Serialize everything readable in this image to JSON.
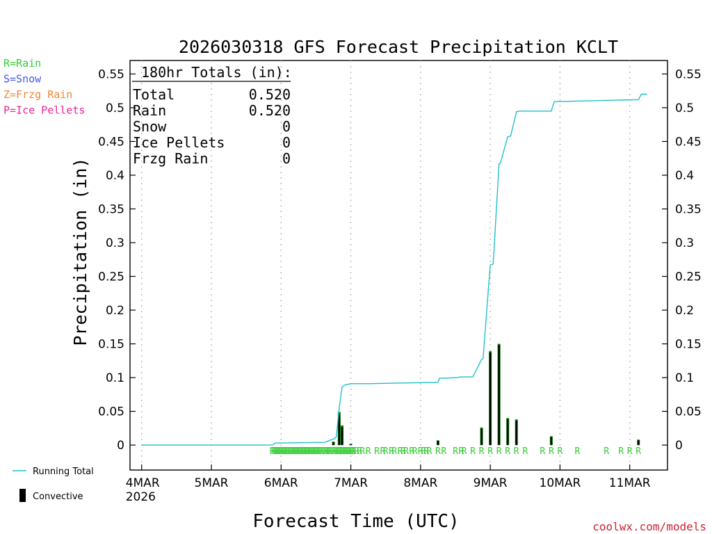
{
  "chart_data": {
    "type": "line",
    "title": "2026030318 GFS Forecast Precipitation KCLT",
    "xlabel": "Forecast Time (UTC)",
    "ylabel": "Precipitation (in)",
    "credit": "coolwx.com/models",
    "ylim": [
      -0.037,
      0.57
    ],
    "xlim_hours": [
      -4,
      181
    ],
    "y_ticks": [
      "0",
      "0.05",
      "0.1",
      "0.15",
      "0.2",
      "0.25",
      "0.3",
      "0.35",
      "0.4",
      "0.45",
      "0.5",
      "0.55"
    ],
    "x_ticks": [
      {
        "label": "4MAR",
        "hour": 0
      },
      {
        "label": "5MAR",
        "hour": 24
      },
      {
        "label": "6MAR",
        "hour": 48
      },
      {
        "label": "7MAR",
        "hour": 72
      },
      {
        "label": "8MAR",
        "hour": 96
      },
      {
        "label": "9MAR",
        "hour": 120
      },
      {
        "label": "10MAR",
        "hour": 144
      },
      {
        "label": "11MAR",
        "hour": 168
      }
    ],
    "x_year": "2026",
    "legend_types": [
      {
        "text": "R=Rain",
        "color": "#33cc33"
      },
      {
        "text": "S=Snow",
        "color": "#4455ee"
      },
      {
        "text": "Z=Frzg Rain",
        "color": "#ee8833"
      },
      {
        "text": "P=Ice Pellets",
        "color": "#ee2299"
      }
    ],
    "legend_series": [
      {
        "text": "Running Total",
        "color": "#1ec0c8"
      },
      {
        "text": "Convective",
        "color": "#000000"
      }
    ],
    "totals": {
      "header": "180hr Totals (in):",
      "rows": [
        {
          "label": "Total",
          "value": "0.520"
        },
        {
          "label": "Rain",
          "value": "0.520"
        },
        {
          "label": "Snow",
          "value": "0"
        },
        {
          "label": "Ice Pellets",
          "value": "0"
        },
        {
          "label": "Frzg Rain",
          "value": "0"
        }
      ]
    },
    "running_total": {
      "hours": [
        0,
        45,
        46,
        63,
        66,
        67,
        68,
        69,
        70,
        72,
        78,
        90,
        102,
        102.5,
        109,
        109.5,
        114,
        117,
        117.5,
        120,
        121,
        123,
        123.5,
        126,
        127,
        129,
        130,
        141,
        142,
        171,
        172,
        174
      ],
      "values": [
        0,
        0,
        0.003,
        0.004,
        0.009,
        0.012,
        0.055,
        0.086,
        0.089,
        0.091,
        0.091,
        0.092,
        0.093,
        0.099,
        0.1,
        0.101,
        0.101,
        0.127,
        0.128,
        0.267,
        0.268,
        0.417,
        0.418,
        0.457,
        0.458,
        0.494,
        0.495,
        0.495,
        0.509,
        0.512,
        0.52,
        0.52
      ]
    },
    "precip_bars": {
      "hours": [
        66,
        68,
        69,
        72,
        102,
        117,
        120,
        123,
        126,
        129,
        141,
        171
      ],
      "values": [
        0.005,
        0.049,
        0.029,
        0.002,
        0.007,
        0.026,
        0.139,
        0.15,
        0.04,
        0.038,
        0.013,
        0.008
      ],
      "color": "#007a00"
    },
    "convective_bars": {
      "hours": [
        66,
        68,
        69,
        72,
        102,
        117,
        120,
        123,
        126,
        129,
        141,
        171
      ],
      "values": [
        0.004,
        0.045,
        0.026,
        0.001,
        0.006,
        0.024,
        0.137,
        0.148,
        0.038,
        0.036,
        0.012,
        0.007
      ]
    },
    "type_markers": {
      "letter": "R",
      "hours": [
        45,
        45.5,
        46,
        46.5,
        47,
        47.5,
        48,
        48.5,
        49,
        49.5,
        50,
        50.5,
        51,
        51.5,
        52,
        52.5,
        53,
        53.5,
        54,
        54.5,
        55,
        55.5,
        56,
        56.5,
        57,
        57.5,
        58,
        58.5,
        59,
        59.5,
        60,
        60.5,
        61,
        61.5,
        62,
        63,
        63.5,
        64,
        64.5,
        65,
        66,
        66.5,
        67,
        67.5,
        68,
        68.5,
        69,
        69.5,
        70,
        70.5,
        71,
        71.5,
        72,
        72.5,
        73,
        74,
        75,
        76,
        78,
        81,
        83,
        84,
        86,
        87,
        89,
        90,
        91,
        93,
        94,
        96,
        97,
        98,
        99,
        102,
        104,
        108,
        110,
        111,
        114,
        117,
        120,
        123,
        126,
        129,
        132,
        138,
        141,
        144,
        150,
        160,
        165,
        168,
        171
      ]
    }
  }
}
